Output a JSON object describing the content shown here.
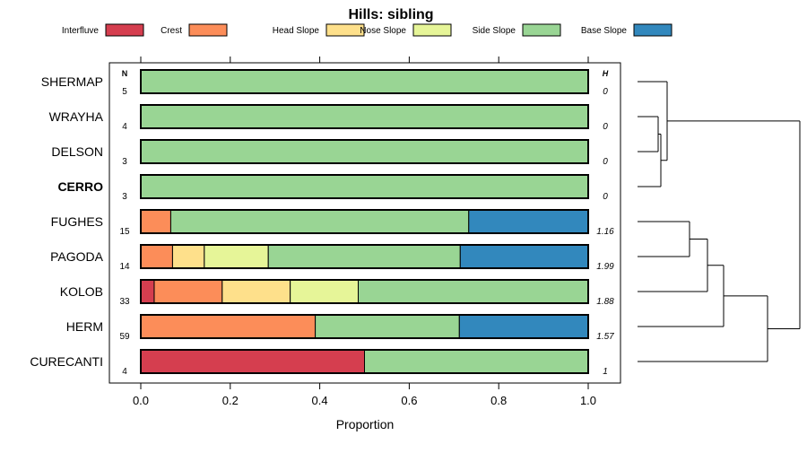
{
  "chart_data": {
    "type": "bar",
    "orientation": "horizontal",
    "stacked": true,
    "title": "Hills: sibling",
    "xlabel": "Proportion",
    "xlim": [
      0,
      1
    ],
    "xticks": [
      "0.0",
      "0.2",
      "0.4",
      "0.6",
      "0.8",
      "1.0"
    ],
    "n_header": "N",
    "h_header": "H",
    "highlighted_category": "CERRO",
    "legend": [
      {
        "name": "Interfluve",
        "color": "#D53E4F"
      },
      {
        "name": "Crest",
        "color": "#FC8D59"
      },
      {
        "name": "Head Slope",
        "color": "#FEE08B"
      },
      {
        "name": "Nose Slope",
        "color": "#E6F598"
      },
      {
        "name": "Side Slope",
        "color": "#99D594"
      },
      {
        "name": "Base Slope",
        "color": "#3288BD"
      }
    ],
    "categories": [
      "SHERMAP",
      "WRAYHA",
      "DELSON",
      "CERRO",
      "FUGHES",
      "PAGODA",
      "KOLOB",
      "HERM",
      "CURECANTI"
    ],
    "n_values": [
      "5",
      "4",
      "3",
      "3",
      "15",
      "14",
      "33",
      "59",
      "4"
    ],
    "h_values": [
      "0",
      "0",
      "0",
      "0",
      "1.16",
      "1.99",
      "1.88",
      "1.57",
      "1"
    ],
    "series": [
      {
        "name": "Interfluve",
        "values": [
          0,
          0,
          0,
          0,
          0,
          0,
          0.03,
          0,
          0.5
        ]
      },
      {
        "name": "Crest",
        "values": [
          0,
          0,
          0,
          0,
          0.067,
          0.071,
          0.152,
          0.39,
          0
        ]
      },
      {
        "name": "Head Slope",
        "values": [
          0,
          0,
          0,
          0,
          0,
          0.071,
          0.152,
          0,
          0
        ]
      },
      {
        "name": "Nose Slope",
        "values": [
          0,
          0,
          0,
          0,
          0,
          0.143,
          0.152,
          0,
          0
        ]
      },
      {
        "name": "Side Slope",
        "values": [
          1,
          1,
          1,
          1,
          0.666,
          0.429,
          0.515,
          0.322,
          0.5
        ]
      },
      {
        "name": "Base Slope",
        "values": [
          0,
          0,
          0,
          0,
          0.267,
          0.286,
          0,
          0.288,
          0
        ]
      }
    ],
    "dendrogram": "hierarchical clustering of categories shown at right"
  }
}
